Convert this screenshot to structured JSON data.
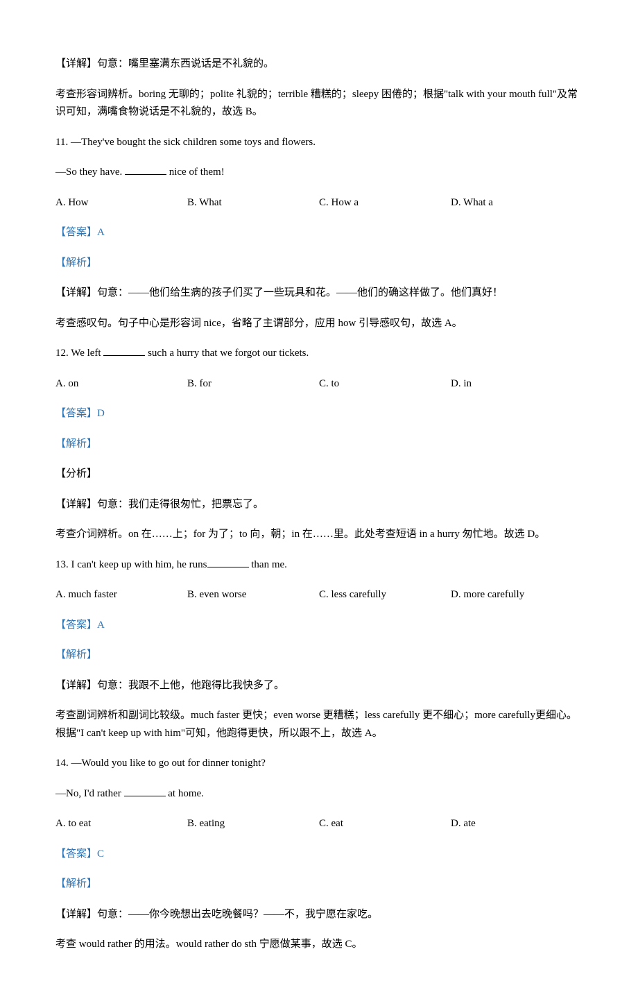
{
  "q10": {
    "detail_label": "【详解】句意：嘴里塞满东西说话是不礼貌的。",
    "explain": "考查形容词辨析。boring 无聊的；polite 礼貌的；terrible 糟糕的；sleepy 困倦的；根据\"talk with your mouth full\"及常识可知，满嘴食物说话是不礼貌的，故选 B。"
  },
  "q11": {
    "num": "11. ",
    "stem_a": "—They've bought the sick children some toys and flowers.",
    "stem_b_pre": "—So they have. ",
    "stem_b_post": " nice of them!",
    "choices": {
      "a": "A. How",
      "b": "B. What",
      "c": "C. How a",
      "d": "D. What a"
    },
    "answer_label": "【答案】A",
    "analysis_label": "【解析】",
    "detail_label": "【详解】句意：——他们给生病的孩子们买了一些玩具和花。——他们的确这样做了。他们真好！",
    "explain": "考查感叹句。句子中心是形容词 nice，省略了主谓部分，应用 how 引导感叹句，故选 A。"
  },
  "q12": {
    "num": "12. ",
    "stem_pre": "We left ",
    "stem_post": " such a hurry that we forgot our tickets.",
    "choices": {
      "a": "A. on",
      "b": "B. for",
      "c": "C. to",
      "d": "D. in"
    },
    "answer_label": "【答案】D",
    "analysis_label": "【解析】",
    "fenxi_label": "【分析】",
    "detail_label": "【详解】句意：我们走得很匆忙，把票忘了。",
    "explain": "考查介词辨析。on 在……上；for 为了；to 向，朝；in 在……里。此处考查短语 in a hurry 匆忙地。故选 D。"
  },
  "q13": {
    "num": "13. ",
    "stem_pre": "I can't keep up with him, he runs",
    "stem_post": " than me.",
    "choices": {
      "a": "A.  much faster",
      "b": "B.  even worse",
      "c": "C.  less carefully",
      "d": "D.  more carefully"
    },
    "answer_label": "【答案】A",
    "analysis_label": "【解析】",
    "detail_label": "【详解】句意：我跟不上他，他跑得比我快多了。",
    "explain": "考查副词辨析和副词比较级。much faster 更快；even worse 更糟糕；less carefully 更不细心；more carefully更细心。根据\"I can't keep up with him\"可知，他跑得更快，所以跟不上，故选 A。"
  },
  "q14": {
    "num": "14. ",
    "stem_a": "—Would you like to go out for dinner tonight?",
    "stem_b_pre": "—No, I'd rather ",
    "stem_b_post": " at home.",
    "choices": {
      "a": "A. to eat",
      "b": "B. eating",
      "c": "C. eat",
      "d": "D. ate"
    },
    "answer_label": "【答案】C",
    "analysis_label": "【解析】",
    "detail_label": "【详解】句意：——你今晚想出去吃晚餐吗？——不，我宁愿在家吃。",
    "explain": "考查 would rather 的用法。would rather do sth 宁愿做某事，故选 C。"
  }
}
